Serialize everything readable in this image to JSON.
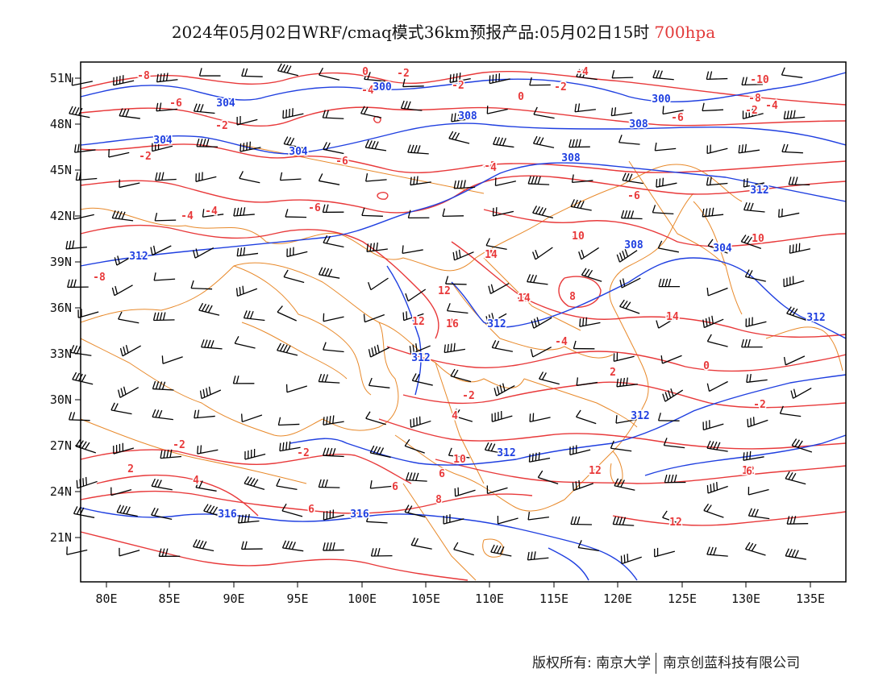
{
  "title": {
    "main": "2024年05月02日WRF/cmaq模式36km预报产品:05月02日15时",
    "level": "700hpa"
  },
  "colors": {
    "temperature": "#e8393a",
    "height": "#1f3fe0",
    "border": "#e8892a",
    "wind": "#000000"
  },
  "axes": {
    "lon_ticks": [
      "80E",
      "85E",
      "90E",
      "95E",
      "100E",
      "105E",
      "110E",
      "115E",
      "120E",
      "125E",
      "130E",
      "135E"
    ],
    "lat_ticks": [
      "51N",
      "48N",
      "45N",
      "42N",
      "39N",
      "36N",
      "33N",
      "30N",
      "27N",
      "24N",
      "21N"
    ]
  },
  "contour_labels": {
    "temperature": [
      "-8",
      "-6",
      "-2",
      "-4",
      "-8",
      "0",
      "-2",
      "-4",
      "-2",
      "0",
      "-2",
      "-4",
      "-6",
      "-10",
      "-4",
      "-8",
      "-2",
      "-4",
      "-6",
      "-2",
      "-6",
      "-4",
      "-2",
      "-6",
      "4",
      "-2",
      "4",
      "-2",
      "2",
      "-2",
      "-4",
      "4",
      "0",
      "-2",
      "2",
      "-2",
      "4",
      "-2",
      "-2",
      "2",
      "4",
      "6",
      "6",
      "6",
      "8",
      "10",
      "12",
      "12",
      "12",
      "10",
      "14",
      "14",
      "12",
      "16",
      "12",
      "14",
      "8",
      "10",
      "6",
      "4"
    ],
    "height": [
      "300",
      "304",
      "300",
      "304",
      "304",
      "308",
      "308",
      "308",
      "312",
      "312",
      "308",
      "304",
      "312",
      "312",
      "312",
      "312",
      "312",
      "316",
      "316"
    ]
  },
  "footer": {
    "left": "版权所有: 南京大学",
    "right": "南京创蓝科技有限公司"
  }
}
